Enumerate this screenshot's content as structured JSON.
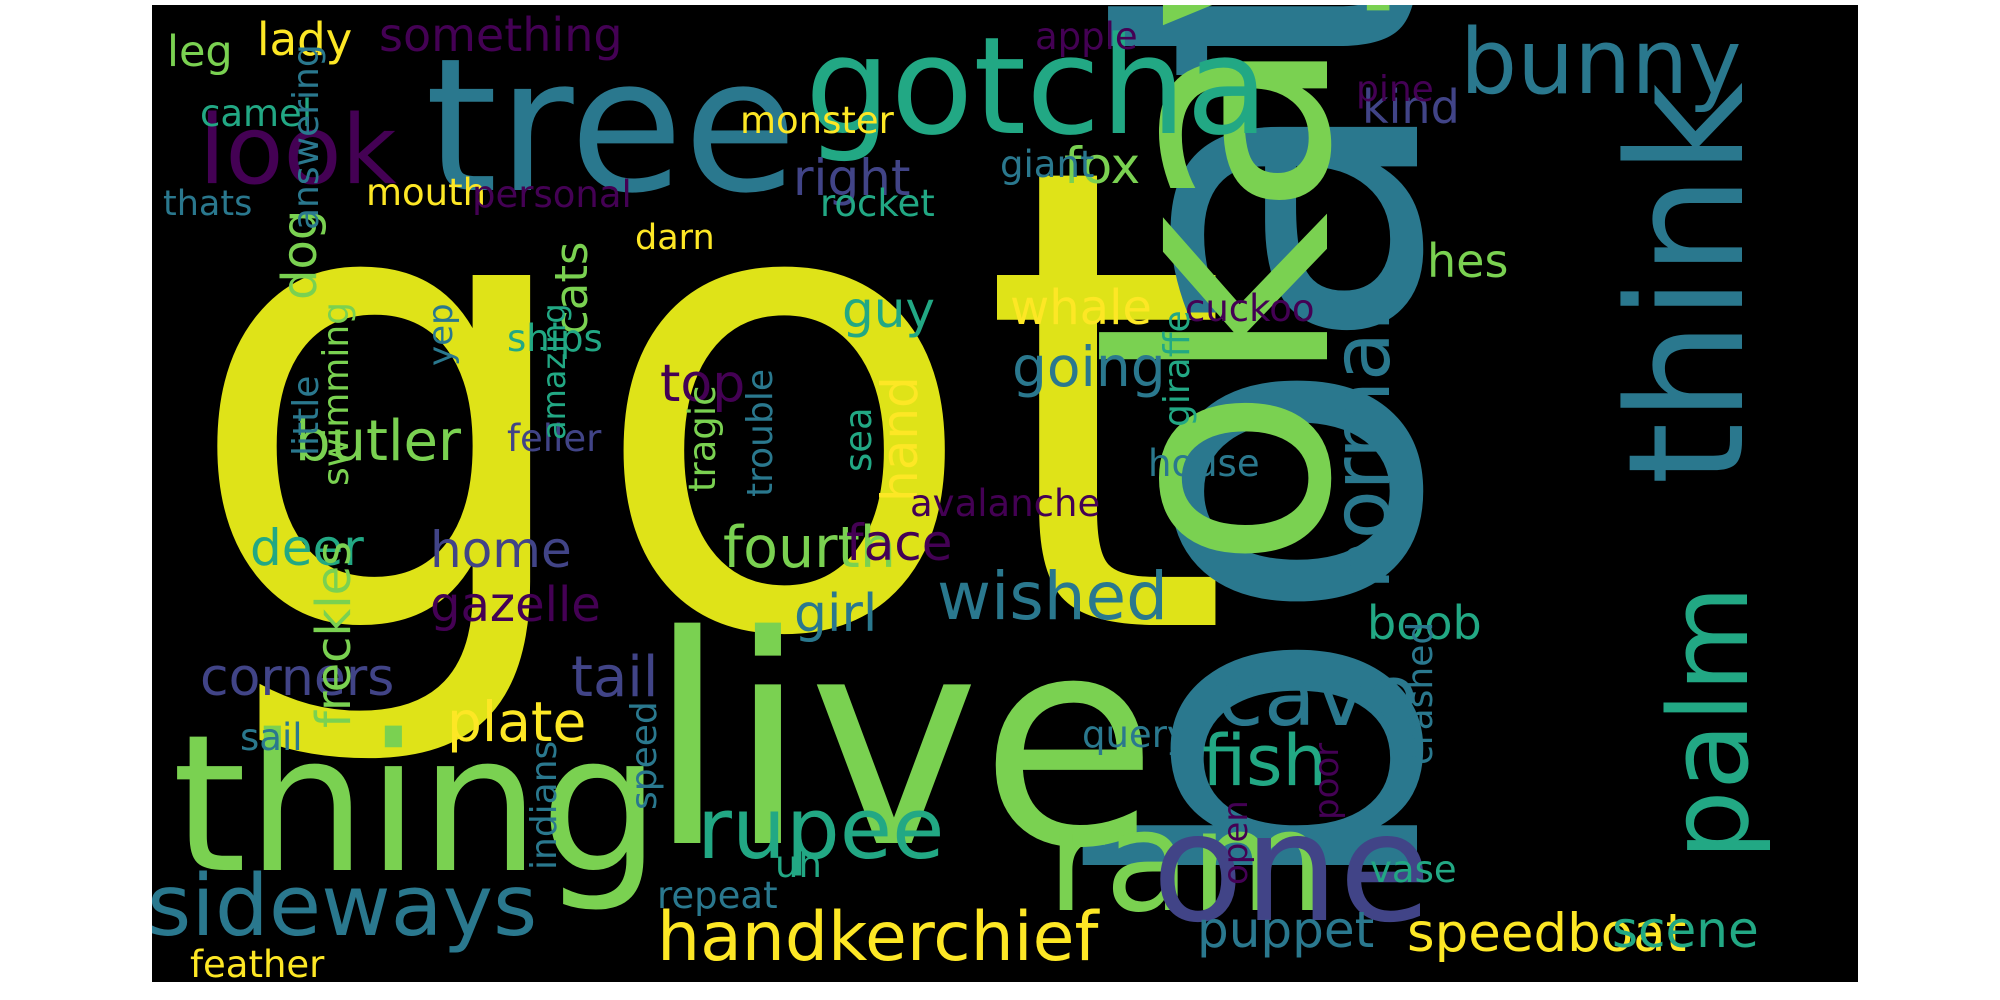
{
  "word_cloud": {
    "background": "#000000",
    "palette": [
      "#fde725",
      "#7ad151",
      "#22a884",
      "#2a788e",
      "#414487",
      "#440154"
    ],
    "words": [
      {
        "text": "got",
        "color": "#dfe318"
      },
      {
        "text": "boat",
        "color": "#2a788e"
      },
      {
        "text": "okay",
        "color": "#7ad151"
      },
      {
        "text": "live",
        "color": "#7ad151"
      },
      {
        "text": "tree",
        "color": "#2a788e"
      },
      {
        "text": "thing",
        "color": "#7ad151"
      },
      {
        "text": "gotcha",
        "color": "#22a884"
      },
      {
        "text": "think",
        "color": "#2a788e"
      },
      {
        "text": "ram",
        "color": "#7ad151"
      },
      {
        "text": "one",
        "color": "#414487"
      },
      {
        "text": "bunny",
        "color": "#2a788e"
      },
      {
        "text": "palm",
        "color": "#22a884"
      },
      {
        "text": "look",
        "color": "#440154"
      },
      {
        "text": "sideways",
        "color": "#2a788e"
      },
      {
        "text": "cave",
        "color": "#2a788e"
      },
      {
        "text": "rupee",
        "color": "#22a884"
      },
      {
        "text": "handkerchief",
        "color": "#fde725"
      },
      {
        "text": "normal",
        "color": "#2a788e"
      },
      {
        "text": "fish",
        "color": "#22a884"
      },
      {
        "text": "wished",
        "color": "#2a788e"
      },
      {
        "text": "speedboat",
        "color": "#fde725"
      },
      {
        "text": "puppet",
        "color": "#2a788e"
      },
      {
        "text": "scene",
        "color": "#22a884"
      },
      {
        "text": "fourth",
        "color": "#7ad151"
      },
      {
        "text": "tail",
        "color": "#414487"
      },
      {
        "text": "corners",
        "color": "#414487"
      },
      {
        "text": "butler",
        "color": "#7ad151"
      },
      {
        "text": "plate",
        "color": "#fde725"
      },
      {
        "text": "going",
        "color": "#2a788e"
      },
      {
        "text": "gazelle",
        "color": "#440154"
      },
      {
        "text": "home",
        "color": "#414487"
      },
      {
        "text": "deer",
        "color": "#22a884"
      },
      {
        "text": "face",
        "color": "#440154"
      },
      {
        "text": "girl",
        "color": "#2a788e"
      },
      {
        "text": "top",
        "color": "#440154"
      },
      {
        "text": "guy",
        "color": "#22a884"
      },
      {
        "text": "whale",
        "color": "#fde725"
      },
      {
        "text": "hand",
        "color": "#fde725"
      },
      {
        "text": "right",
        "color": "#414487"
      },
      {
        "text": "fox",
        "color": "#7ad151"
      },
      {
        "text": "something",
        "color": "#440154"
      },
      {
        "text": "lady",
        "color": "#fde725"
      },
      {
        "text": "leg",
        "color": "#7ad151"
      },
      {
        "text": "kind",
        "color": "#414487"
      },
      {
        "text": "hes",
        "color": "#7ad151"
      },
      {
        "text": "boob",
        "color": "#22a884"
      },
      {
        "text": "cats",
        "color": "#7ad151"
      },
      {
        "text": "dog",
        "color": "#7ad151"
      },
      {
        "text": "freckles",
        "color": "#7ad151"
      },
      {
        "text": "feather",
        "color": "#fde725"
      },
      {
        "text": "monster",
        "color": "#fde725"
      },
      {
        "text": "mouth",
        "color": "#fde725"
      },
      {
        "text": "personal",
        "color": "#440154"
      },
      {
        "text": "rocket",
        "color": "#22a884"
      },
      {
        "text": "giant",
        "color": "#2a788e"
      },
      {
        "text": "darn",
        "color": "#fde725"
      },
      {
        "text": "camel",
        "color": "#22a884"
      },
      {
        "text": "thats",
        "color": "#2a788e"
      },
      {
        "text": "apple",
        "color": "#440154"
      },
      {
        "text": "pine",
        "color": "#440154"
      },
      {
        "text": "cuckoo",
        "color": "#440154"
      },
      {
        "text": "house",
        "color": "#2a788e"
      },
      {
        "text": "avalanche",
        "color": "#440154"
      },
      {
        "text": "ships",
        "color": "#22a884"
      },
      {
        "text": "feller",
        "color": "#414487"
      },
      {
        "text": "sail",
        "color": "#2a788e"
      },
      {
        "text": "query",
        "color": "#2a788e"
      },
      {
        "text": "repeat",
        "color": "#2a788e"
      },
      {
        "text": "uh",
        "color": "#22a884"
      },
      {
        "text": "vase",
        "color": "#22a884"
      },
      {
        "text": "answering",
        "color": "#2a788e"
      },
      {
        "text": "little",
        "color": "#2a788e"
      },
      {
        "text": "swimming",
        "color": "#7ad151"
      },
      {
        "text": "yep",
        "color": "#2a788e"
      },
      {
        "text": "amazing",
        "color": "#22a884"
      },
      {
        "text": "tragic",
        "color": "#7ad151"
      },
      {
        "text": "trouble",
        "color": "#2a788e"
      },
      {
        "text": "sea",
        "color": "#22a884"
      },
      {
        "text": "giraffe",
        "color": "#22a884"
      },
      {
        "text": "indians",
        "color": "#2a788e"
      },
      {
        "text": "speed",
        "color": "#2a788e"
      },
      {
        "text": "open",
        "color": "#440154"
      },
      {
        "text": "poor",
        "color": "#440154"
      },
      {
        "text": "crashed",
        "color": "#2a788e"
      }
    ]
  }
}
